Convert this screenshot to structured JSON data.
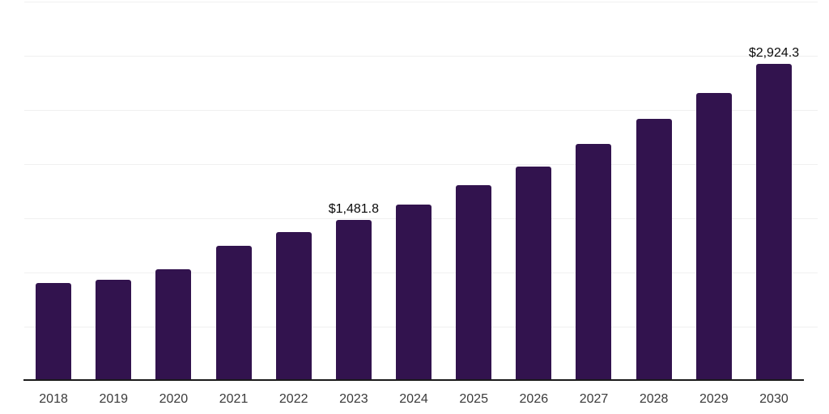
{
  "chart_data": {
    "type": "bar",
    "title": "",
    "xlabel": "",
    "ylabel": "",
    "categories": [
      "2018",
      "2019",
      "2020",
      "2021",
      "2022",
      "2023",
      "2024",
      "2025",
      "2026",
      "2027",
      "2028",
      "2029",
      "2030"
    ],
    "values": [
      900,
      930,
      1030,
      1245,
      1370,
      1481.8,
      1630,
      1805,
      1980,
      2190,
      2415,
      2655,
      2924.3
    ],
    "labeled_points": [
      {
        "category": "2023",
        "label": "$1,481.8"
      },
      {
        "category": "2030",
        "label": "$2,924.3"
      }
    ],
    "ylim": [
      0,
      3500
    ],
    "gridline_step": 500,
    "grid": "horizontal",
    "y_tick_labels_shown": false,
    "legend_position": "none",
    "colors": {
      "bar": "#32134e",
      "axis": "#1a1a1a",
      "gridline": "#f0f0f0",
      "tick_label": "#3a3a3a",
      "data_label": "#0a0a0a",
      "background": "#ffffff"
    }
  }
}
